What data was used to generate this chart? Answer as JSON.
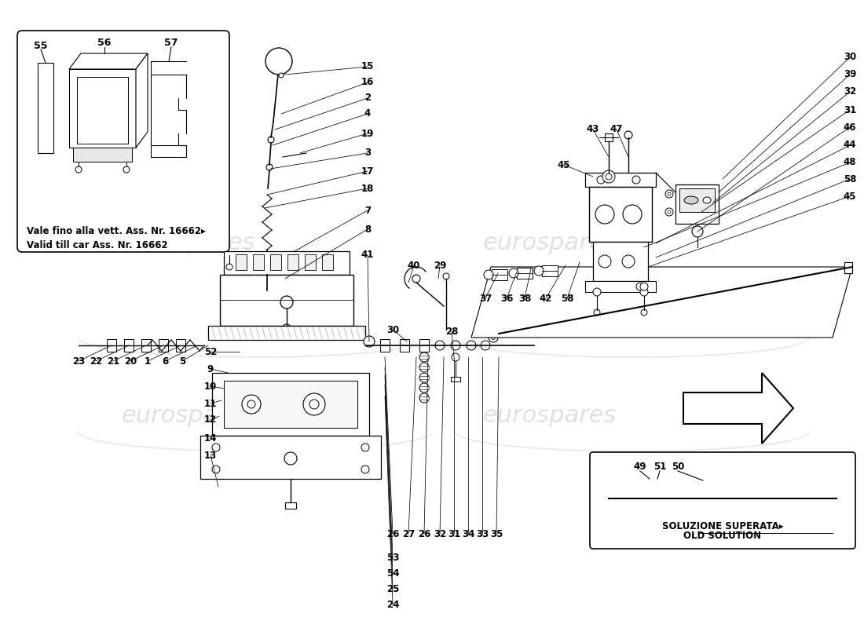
{
  "background_color": "#ffffff",
  "line_color": "#000000",
  "watermark_text": "eurospares",
  "watermark_color": "#c0d0e0",
  "fs": 8.5,
  "note_text_it": "Vale fino alla vett. Ass. Nr. 16662▸",
  "note_text_en": "Valid till car Ass. Nr. 16662",
  "old_solution_it": "SOLUZIONE SUPERATA▸",
  "old_solution_en": "OLD SOLUTION"
}
